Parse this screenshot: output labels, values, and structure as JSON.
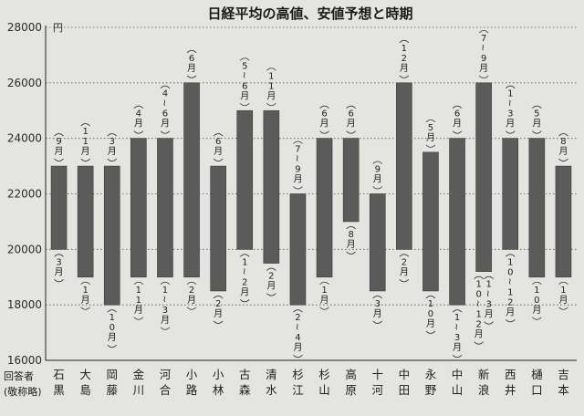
{
  "chart_data": {
    "type": "bar",
    "title": "日経平均の高値、安値予想と時期",
    "y_unit": "円",
    "ylim": [
      16000,
      28000
    ],
    "yticks": [
      16000,
      18000,
      20000,
      22000,
      24000,
      26000,
      28000
    ],
    "respondent_header": "回答者",
    "respondent_header_note": "(敬称略)",
    "categories": [
      "石黒",
      "大島",
      "岡藤",
      "金川",
      "河合",
      "小路",
      "小林",
      "古森",
      "清水",
      "杉江",
      "杉山",
      "高原",
      "十河",
      "中田",
      "永野",
      "中山",
      "新浪",
      "西井",
      "樋口",
      "吉本"
    ],
    "series": [
      {
        "name": "高値",
        "values": [
          23000,
          23000,
          23000,
          24000,
          24000,
          26000,
          23000,
          25000,
          25000,
          22000,
          24000,
          24000,
          22000,
          26000,
          23500,
          24000,
          26000,
          24000,
          24000,
          23000
        ],
        "timing": [
          "9月",
          "11月",
          "3月",
          "4月",
          "4〜6月",
          "6月",
          "6月",
          "5〜6月",
          "11月",
          "7〜9月",
          "6月",
          "6月",
          "9月",
          "12月",
          "5月",
          "6月",
          "7〜9月",
          "1〜3月",
          "5月",
          "8月"
        ]
      },
      {
        "name": "安値",
        "values": [
          20000,
          19000,
          18000,
          19000,
          19000,
          19000,
          18500,
          20000,
          19500,
          18000,
          19000,
          21000,
          18500,
          20000,
          18500,
          18000,
          19200,
          20000,
          19000,
          19000
        ],
        "timing": [
          "3月",
          "1月",
          "10月",
          "11月",
          "1〜3月",
          "2月",
          "2月",
          "1〜2月",
          "2月",
          "2〜4月",
          "1月",
          "8月",
          "3月",
          "2月",
          "10月",
          "1〜3月",
          "10〜12月,1〜3月",
          "10〜12月",
          "10月",
          "1月"
        ]
      }
    ],
    "grid": true
  }
}
